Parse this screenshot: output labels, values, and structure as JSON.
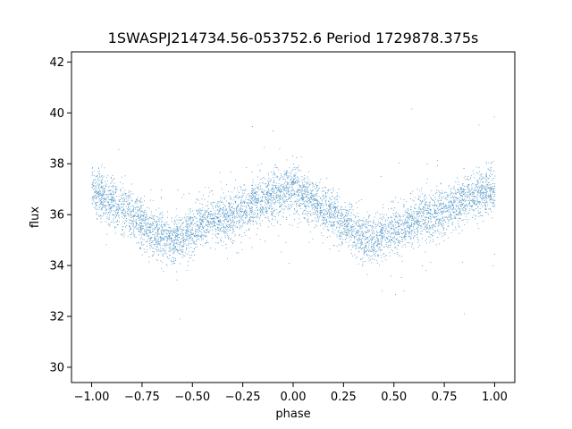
{
  "chart_data": {
    "type": "scatter",
    "title": "1SWASPJ214734.56-053752.6 Period 1729878.375s",
    "xlabel": "phase",
    "ylabel": "flux",
    "xlim": [
      -1.1,
      1.1
    ],
    "ylim": [
      29.4,
      42.4
    ],
    "xticks": [
      -1.0,
      -0.75,
      -0.5,
      -0.25,
      0.0,
      0.25,
      0.5,
      0.75,
      1.0
    ],
    "xtick_labels": [
      "−1.00",
      "−0.75",
      "−0.50",
      "−0.25",
      "0.00",
      "0.25",
      "0.50",
      "0.75",
      "1.00"
    ],
    "yticks": [
      30,
      32,
      34,
      36,
      38,
      40,
      42
    ],
    "ytick_labels": [
      "30",
      "32",
      "34",
      "36",
      "38",
      "40",
      "42"
    ],
    "grid": false,
    "marker_color": "#1f77b4",
    "series": [
      {
        "x": [
          -1.0,
          -0.9,
          -0.8,
          -0.7,
          -0.6,
          -0.5,
          -0.4,
          -0.3,
          -0.2,
          -0.1,
          0.0,
          0.1,
          0.2,
          0.3,
          0.4,
          0.5,
          0.6,
          0.7,
          0.8,
          0.9,
          1.0
        ],
        "y": [
          37.0,
          36.5,
          36.0,
          35.3,
          35.0,
          35.4,
          35.8,
          36.0,
          36.4,
          36.8,
          37.0,
          36.5,
          36.0,
          35.3,
          35.0,
          35.4,
          35.8,
          36.0,
          36.4,
          36.8,
          37.0
        ]
      }
    ]
  }
}
